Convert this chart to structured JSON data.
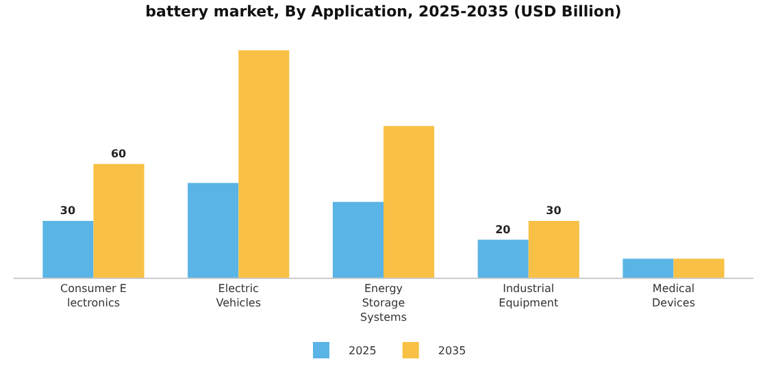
{
  "chart_data": {
    "type": "bar",
    "title": "battery market, By Application, 2025-2035 (USD Billion)",
    "categories": [
      "Consumer E\nlectronics",
      "Electric\nVehicles",
      "Energy\nStorage\nSystems",
      "Industrial\nEquipment",
      "Medical\nDevices"
    ],
    "series": [
      {
        "name": "2025",
        "color": "#5ab4e5",
        "values": [
          30,
          50,
          40,
          20,
          10
        ],
        "value_labels": [
          "30",
          null,
          null,
          "20",
          null
        ]
      },
      {
        "name": "2035",
        "color": "#f8c146",
        "values": [
          60,
          120,
          80,
          30,
          10
        ],
        "value_labels": [
          "60",
          null,
          null,
          "30",
          null
        ]
      }
    ],
    "grid": false,
    "legend": "bottom"
  }
}
